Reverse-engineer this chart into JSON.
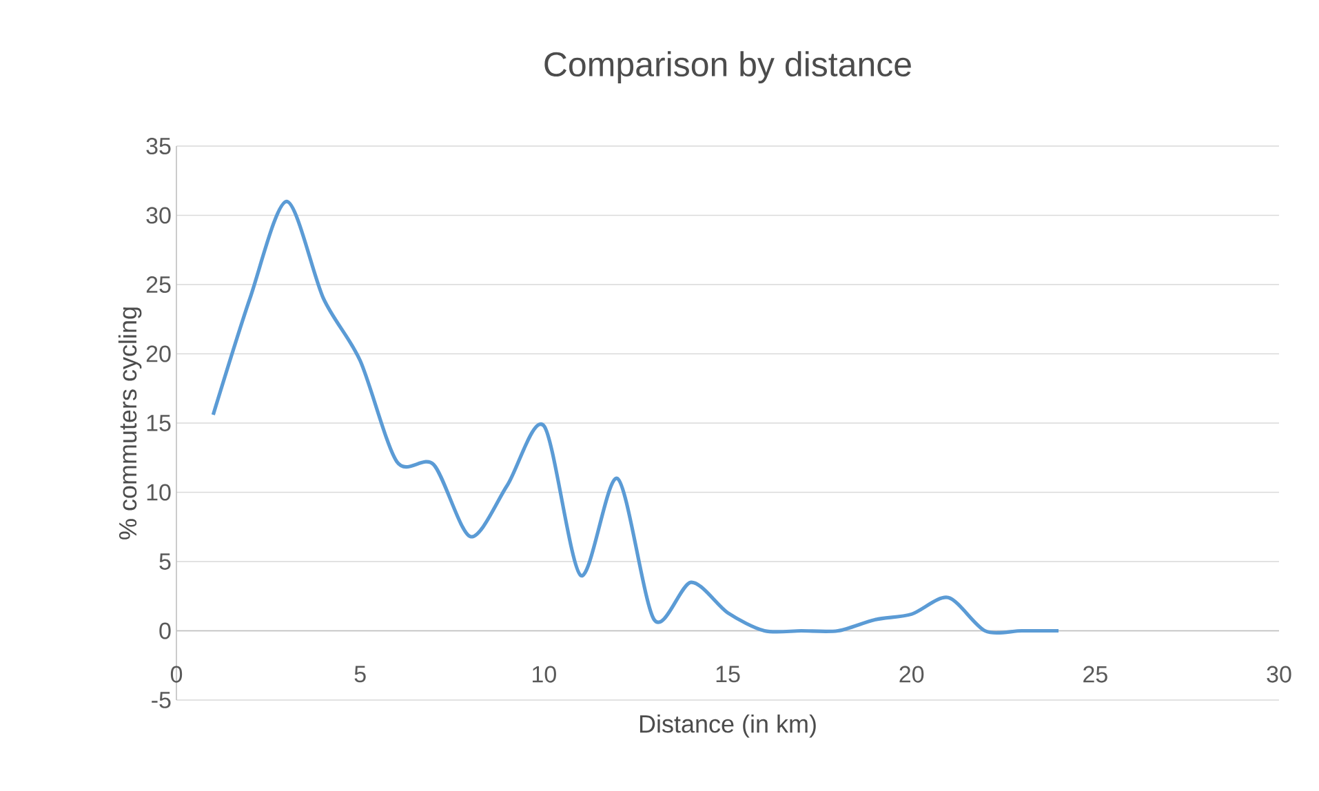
{
  "chart_data": {
    "type": "line",
    "title": "Comparison by distance",
    "xlabel": "Distance (in km)",
    "ylabel": "% commuters cycling",
    "x": [
      1,
      2,
      3,
      4,
      5,
      6,
      7,
      8,
      9,
      10,
      11,
      12,
      13,
      14,
      15,
      16,
      17,
      18,
      19,
      20,
      21,
      22,
      23,
      24
    ],
    "series": [
      {
        "color": "#5b9bd5",
        "values": [
          15.6,
          24,
          31,
          24,
          19.5,
          12.2,
          12,
          6.8,
          10.5,
          14.8,
          4,
          11,
          0.8,
          3.5,
          1.3,
          0,
          0,
          0,
          0.8,
          1.2,
          2.4,
          0,
          0,
          0
        ]
      }
    ],
    "xlim": [
      0,
      30
    ],
    "xticks": [
      0,
      5,
      10,
      15,
      20,
      25,
      30
    ],
    "ylim": [
      -5,
      35
    ],
    "yticks": [
      -5,
      0,
      5,
      10,
      15,
      20,
      25,
      30,
      35
    ],
    "grid": "y",
    "marker": "none",
    "line_style": "solid"
  }
}
